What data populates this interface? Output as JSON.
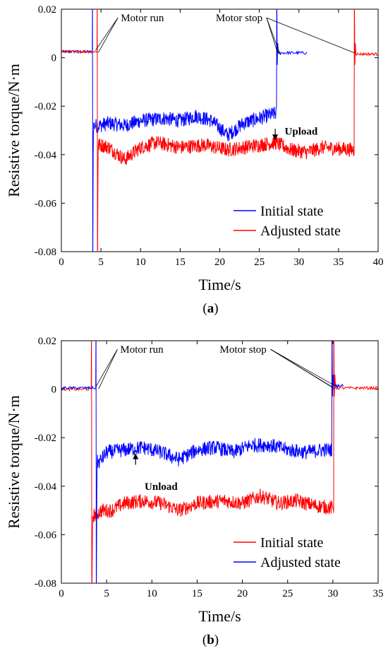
{
  "chart_data": [
    {
      "type": "line",
      "caption": "(a)",
      "caption_letter": "a",
      "xlabel": "Time/s",
      "ylabel": "Resistive torque/N·m",
      "xlim": [
        0,
        40
      ],
      "ylim": [
        -0.08,
        0.02
      ],
      "xticks": [
        0,
        5,
        10,
        15,
        20,
        25,
        30,
        35,
        40
      ],
      "yticks": [
        0.02,
        0,
        -0.02,
        -0.04,
        -0.06,
        -0.08
      ],
      "ytick_labels": [
        "0.02",
        "0",
        "-0.02",
        "-0.04",
        "-0.06",
        "-0.08"
      ],
      "legend_position": "bottom-right",
      "series": [
        {
          "name": "Initial state",
          "color": "#0000ff",
          "start": 0,
          "base_before": 0.0025,
          "run_time": 3.9,
          "steady": [
            [
              4.8,
              -0.028
            ],
            [
              6,
              -0.027
            ],
            [
              8,
              -0.028
            ],
            [
              10,
              -0.026
            ],
            [
              13,
              -0.025
            ],
            [
              15,
              -0.026
            ],
            [
              17,
              -0.024
            ],
            [
              19,
              -0.026
            ],
            [
              21,
              -0.032
            ],
            [
              23,
              -0.027
            ],
            [
              25,
              -0.025
            ],
            [
              27,
              -0.023
            ]
          ],
          "stop_time": 27.2,
          "base_after": 0.002,
          "end": 31
        },
        {
          "name": "Adjusted state",
          "color": "#ff0000",
          "start": 0,
          "base_before": 0.0025,
          "run_time": 4.5,
          "steady": [
            [
              5,
              -0.036
            ],
            [
              6,
              -0.037
            ],
            [
              8,
              -0.042
            ],
            [
              10,
              -0.037
            ],
            [
              12,
              -0.035
            ],
            [
              15,
              -0.037
            ],
            [
              18,
              -0.036
            ],
            [
              21,
              -0.038
            ],
            [
              23,
              -0.037
            ],
            [
              25,
              -0.036
            ],
            [
              27,
              -0.035
            ],
            [
              29,
              -0.038
            ],
            [
              31,
              -0.039
            ],
            [
              33,
              -0.037
            ],
            [
              36.9,
              -0.038
            ]
          ],
          "stop_time": 37.0,
          "base_after": 0.0015,
          "end": 40
        }
      ],
      "annotations": [
        {
          "text": "Motor run",
          "at": [
            4.3,
            0.003
          ],
          "label_at": [
            7.5,
            0.015
          ]
        },
        {
          "text": "Motor stop",
          "at": [
            27.3,
            0.002
          ],
          "label_at": [
            19.5,
            0.015
          ],
          "at2": [
            37.0,
            0.002
          ]
        },
        {
          "text": "Upload",
          "at": [
            27,
            -0.034
          ],
          "label_at": [
            28.2,
            -0.0318
          ],
          "bold": true
        }
      ]
    },
    {
      "type": "line",
      "caption": "(b)",
      "caption_letter": "b",
      "xlabel": "Time/s",
      "ylabel": "Resistive torque/N·m",
      "xlim": [
        0,
        35
      ],
      "ylim": [
        -0.08,
        0.02
      ],
      "xticks": [
        0,
        5,
        10,
        15,
        20,
        25,
        30,
        35
      ],
      "yticks": [
        0.02,
        0,
        -0.02,
        -0.04,
        -0.06,
        -0.08
      ],
      "ytick_labels": [
        "0.02",
        "0",
        "-0.02",
        "-0.04",
        "-0.06",
        "-0.08"
      ],
      "legend_position": "bottom-right",
      "series": [
        {
          "name": "Initial state",
          "color": "#ff0000",
          "start": 0,
          "base_before": 0.0,
          "run_time": 3.3,
          "steady": [
            [
              3.6,
              -0.052
            ],
            [
              4.5,
              -0.05
            ],
            [
              5.5,
              -0.05
            ],
            [
              7,
              -0.047
            ],
            [
              9,
              -0.046
            ],
            [
              11,
              -0.047
            ],
            [
              13,
              -0.05
            ],
            [
              15,
              -0.047
            ],
            [
              18,
              -0.046
            ],
            [
              20,
              -0.047
            ],
            [
              22,
              -0.044
            ],
            [
              24,
              -0.047
            ],
            [
              26,
              -0.046
            ],
            [
              28,
              -0.048
            ],
            [
              30,
              -0.049
            ]
          ],
          "stop_time": 30.1,
          "base_after": 0.0005,
          "end": 35
        },
        {
          "name": "Adjusted state",
          "color": "#0000ff",
          "start": 0,
          "base_before": 0.0005,
          "run_time": 3.8,
          "steady": [
            [
              4.2,
              -0.03
            ],
            [
              5,
              -0.026
            ],
            [
              7,
              -0.025
            ],
            [
              9,
              -0.024
            ],
            [
              11,
              -0.026
            ],
            [
              13,
              -0.029
            ],
            [
              15,
              -0.025
            ],
            [
              17,
              -0.024
            ],
            [
              19,
              -0.026
            ],
            [
              21,
              -0.023
            ],
            [
              23,
              -0.023
            ],
            [
              25,
              -0.025
            ],
            [
              27,
              -0.026
            ],
            [
              29,
              -0.025
            ],
            [
              29.8,
              -0.025
            ]
          ],
          "stop_time": 29.9,
          "base_after": 0.0015,
          "end": 31.2
        }
      ],
      "annotations": [
        {
          "text": "Motor run",
          "at": [
            3.8,
            0.001
          ],
          "label_at": [
            6.5,
            0.015
          ]
        },
        {
          "text": "Motor stop",
          "at": [
            29.9,
            0.001
          ],
          "label_at": [
            17.5,
            0.015
          ],
          "at2": [
            30.2,
            0.0015
          ]
        },
        {
          "text": "Unload",
          "at": [
            8.2,
            -0.0265
          ],
          "label_at": [
            9.2,
            -0.0415
          ],
          "bold": true
        }
      ]
    }
  ]
}
